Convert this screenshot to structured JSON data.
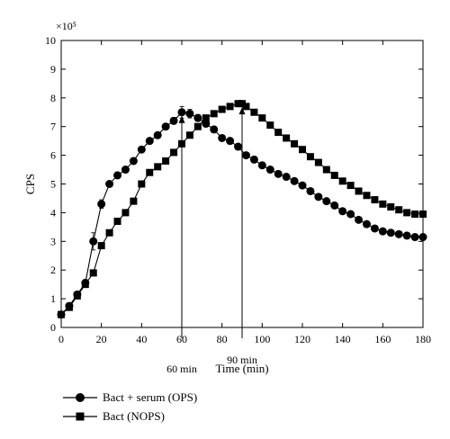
{
  "chart_data": {
    "type": "line",
    "xlabel": "Time (min)",
    "ylabel": "CPS",
    "y_multiplier": "×10⁵",
    "xlim": [
      0,
      180
    ],
    "ylim": [
      0,
      10
    ],
    "x_ticks": [
      0,
      20,
      40,
      60,
      80,
      100,
      120,
      140,
      160,
      180
    ],
    "y_ticks": [
      0,
      1,
      2,
      3,
      4,
      5,
      6,
      7,
      8,
      9,
      10
    ],
    "grid": false,
    "legend_position": "bottom-left, below plot",
    "annotations": [
      {
        "text": "60 min",
        "x": 60
      },
      {
        "text": "90 min",
        "x": 90
      }
    ],
    "series": [
      {
        "name": "Bact + serum (OPS)",
        "marker": "circle",
        "x": [
          0,
          4,
          8,
          12,
          16,
          20,
          24,
          28,
          32,
          36,
          40,
          44,
          48,
          52,
          56,
          60,
          64,
          68,
          72,
          76,
          80,
          84,
          88,
          92,
          96,
          100,
          104,
          108,
          112,
          116,
          120,
          124,
          128,
          132,
          136,
          140,
          144,
          148,
          152,
          156,
          160,
          164,
          168,
          172,
          176,
          180
        ],
        "y": [
          0.45,
          0.75,
          1.15,
          1.55,
          3.0,
          4.3,
          5.0,
          5.3,
          5.5,
          5.8,
          6.2,
          6.5,
          6.7,
          7.0,
          7.2,
          7.5,
          7.45,
          7.3,
          7.1,
          6.9,
          6.6,
          6.5,
          6.3,
          6.0,
          5.85,
          5.65,
          5.5,
          5.35,
          5.25,
          5.1,
          4.95,
          4.75,
          4.55,
          4.4,
          4.25,
          4.05,
          3.95,
          3.75,
          3.6,
          3.45,
          3.35,
          3.3,
          3.25,
          3.2,
          3.15,
          3.15
        ],
        "error": [
          0.08,
          0.1,
          0.1,
          0.12,
          0.3,
          0.15,
          0.1,
          0.1,
          0.1,
          0.1,
          0.1,
          0.1,
          0.1,
          0.1,
          0.12,
          0.2,
          0.15,
          0.12,
          0.1,
          0.1,
          0.1,
          0.1,
          0.1,
          0.1,
          0.1,
          0.1,
          0.1,
          0.1,
          0.1,
          0.1,
          0.1,
          0.1,
          0.1,
          0.1,
          0.1,
          0.1,
          0.1,
          0.1,
          0.1,
          0.1,
          0.1,
          0.1,
          0.1,
          0.1,
          0.1,
          0.1
        ]
      },
      {
        "name": "Bact (NOPS)",
        "marker": "square",
        "x": [
          0,
          4,
          8,
          12,
          16,
          20,
          24,
          28,
          32,
          36,
          40,
          44,
          48,
          52,
          56,
          60,
          64,
          68,
          72,
          76,
          80,
          84,
          88,
          90,
          92,
          96,
          100,
          104,
          108,
          112,
          116,
          120,
          124,
          128,
          132,
          136,
          140,
          144,
          148,
          152,
          156,
          160,
          164,
          168,
          172,
          176,
          180
        ],
        "y": [
          0.45,
          0.7,
          1.1,
          1.5,
          1.9,
          2.85,
          3.3,
          3.7,
          4.0,
          4.4,
          5.0,
          5.4,
          5.6,
          5.8,
          6.1,
          6.4,
          6.7,
          7.0,
          7.3,
          7.45,
          7.6,
          7.7,
          7.8,
          7.8,
          7.7,
          7.5,
          7.3,
          7.05,
          6.8,
          6.6,
          6.4,
          6.2,
          5.95,
          5.75,
          5.5,
          5.3,
          5.1,
          4.95,
          4.75,
          4.6,
          4.45,
          4.3,
          4.2,
          4.1,
          4.0,
          3.95,
          3.95
        ]
      }
    ]
  },
  "legend": [
    {
      "label": "Bact + serum (OPS)"
    },
    {
      "label": "Bact (NOPS)"
    }
  ]
}
